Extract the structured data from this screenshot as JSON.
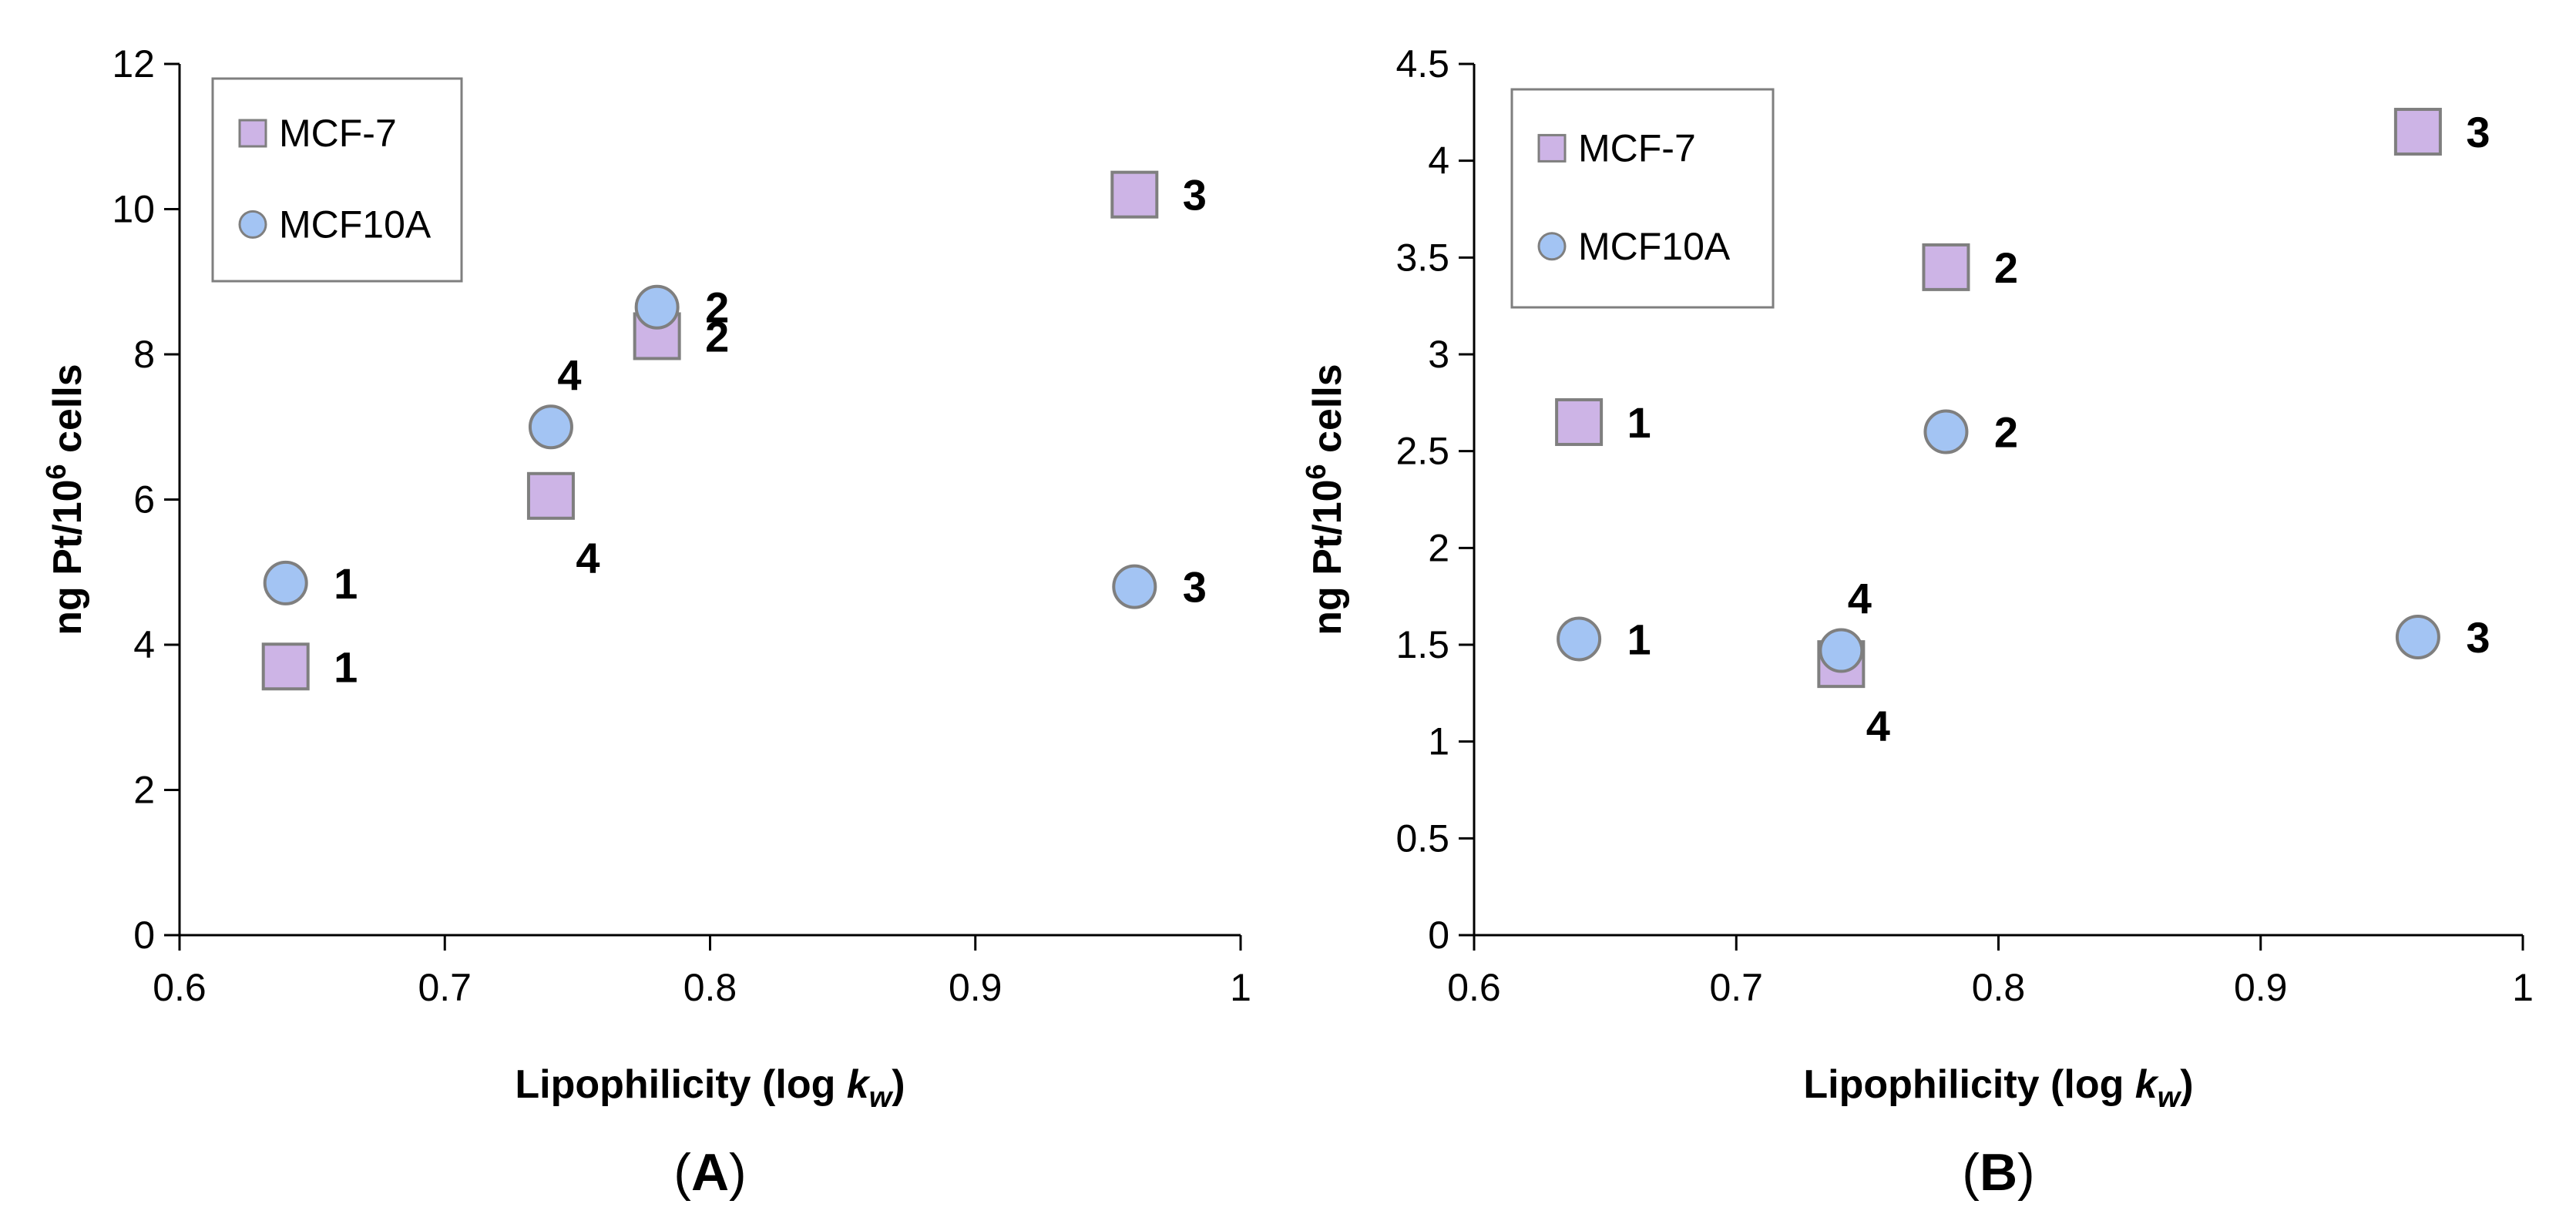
{
  "chart_data": [
    {
      "type": "scatter",
      "panel_label": "A",
      "xlabel": "Lipophilicity (log kw)",
      "xlabel_parts": {
        "main": "Lipophilicity (log ",
        "k": "k",
        "sub": "w",
        "close": ")"
      },
      "ylabel": "ng Pt/10^6 cells",
      "ylabel_parts": {
        "main": "ng Pt/10",
        "sup": "6",
        "rest": " cells"
      },
      "xlim": [
        0.6,
        1.0
      ],
      "ylim": [
        0,
        12
      ],
      "xticks": [
        0.6,
        0.7,
        0.8,
        0.9,
        1.0
      ],
      "xtick_labels": [
        "0.6",
        "0.7",
        "0.8",
        "0.9",
        "1"
      ],
      "yticks": [
        0,
        2,
        4,
        6,
        8,
        10,
        12
      ],
      "ytick_labels": [
        "0",
        "2",
        "4",
        "6",
        "8",
        "10",
        "12"
      ],
      "legend": [
        "MCF-7",
        "MCF10A"
      ],
      "legend_position": "top-left",
      "series": [
        {
          "name": "MCF-7",
          "marker": "square",
          "color": "#cdb4e6",
          "edge_color": "#7f7f7f",
          "points": [
            {
              "x": 0.64,
              "y": 3.7,
              "label": "1",
              "label_side": "right"
            },
            {
              "x": 0.78,
              "y": 8.25,
              "label": "2",
              "label_side": "right"
            },
            {
              "x": 0.96,
              "y": 10.2,
              "label": "3",
              "label_side": "right"
            },
            {
              "x": 0.74,
              "y": 6.05,
              "label": "4",
              "label_side": "below-right"
            }
          ]
        },
        {
          "name": "MCF10A",
          "marker": "circle",
          "color": "#a3c4f3",
          "edge_color": "#7f7f7f",
          "points": [
            {
              "x": 0.64,
              "y": 4.85,
              "label": "1",
              "label_side": "right"
            },
            {
              "x": 0.78,
              "y": 8.65,
              "label": "2",
              "label_side": "right"
            },
            {
              "x": 0.96,
              "y": 4.8,
              "label": "3",
              "label_side": "right"
            },
            {
              "x": 0.74,
              "y": 7.0,
              "label": "4",
              "label_side": "above-right"
            }
          ]
        }
      ]
    },
    {
      "type": "scatter",
      "panel_label": "B",
      "xlabel": "Lipophilicity (log kw)",
      "xlabel_parts": {
        "main": "Lipophilicity (log ",
        "k": "k",
        "sub": "w",
        "close": ")"
      },
      "ylabel": "ng Pt/10^6 cells",
      "ylabel_parts": {
        "main": "ng Pt/10",
        "sup": "6",
        "rest": " cells"
      },
      "xlim": [
        0.6,
        1.0
      ],
      "ylim": [
        0,
        4.5
      ],
      "xticks": [
        0.6,
        0.7,
        0.8,
        0.9,
        1.0
      ],
      "xtick_labels": [
        "0.6",
        "0.7",
        "0.8",
        "0.9",
        "1"
      ],
      "yticks": [
        0,
        0.5,
        1,
        1.5,
        2,
        2.5,
        3,
        3.5,
        4,
        4.5
      ],
      "ytick_labels": [
        "0",
        "0.5",
        "1",
        "1.5",
        "2",
        "2.5",
        "3",
        "3.5",
        "4",
        "4.5"
      ],
      "legend": [
        "MCF-7",
        "MCF10A"
      ],
      "legend_position": "top-left",
      "series": [
        {
          "name": "MCF-7",
          "marker": "square",
          "color": "#cdb4e6",
          "edge_color": "#7f7f7f",
          "points": [
            {
              "x": 0.64,
              "y": 2.65,
              "label": "1",
              "label_side": "right"
            },
            {
              "x": 0.78,
              "y": 3.45,
              "label": "2",
              "label_side": "right"
            },
            {
              "x": 0.96,
              "y": 4.15,
              "label": "3",
              "label_side": "right"
            },
            {
              "x": 0.74,
              "y": 1.4,
              "label": "4",
              "label_side": "below-right"
            }
          ]
        },
        {
          "name": "MCF10A",
          "marker": "circle",
          "color": "#a3c4f3",
          "edge_color": "#7f7f7f",
          "points": [
            {
              "x": 0.64,
              "y": 1.53,
              "label": "1",
              "label_side": "right"
            },
            {
              "x": 0.78,
              "y": 2.6,
              "label": "2",
              "label_side": "right"
            },
            {
              "x": 0.96,
              "y": 1.54,
              "label": "3",
              "label_side": "right"
            },
            {
              "x": 0.74,
              "y": 1.47,
              "label": "4",
              "label_side": "above-right"
            }
          ]
        }
      ]
    }
  ]
}
